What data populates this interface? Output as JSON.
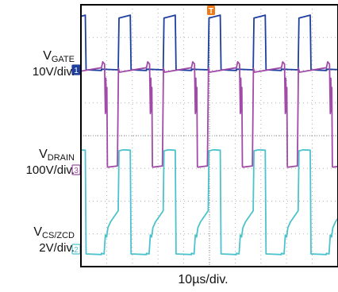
{
  "colors": {
    "gate": "#1f3f9f",
    "drain": "#a14aa8",
    "cs": "#4cc3cc",
    "trigger": "#f07a18",
    "frame": "#000000",
    "grid": "#b0b0b0",
    "background": "#ffffff"
  },
  "labels": {
    "gate_main": "V",
    "gate_sub": "GATE",
    "gate_scale": "10V/div.",
    "drain_main": "V",
    "drain_sub": "DRAIN",
    "drain_scale": "100V/div.",
    "cs_main": "V",
    "cs_sub": "CS/ZCD",
    "cs_scale": "2V/div.",
    "time_scale": "10µs/div."
  },
  "markers": {
    "gate": "1",
    "drain": "3",
    "cs": "2",
    "trigger": "T"
  },
  "chart_data": {
    "type": "line",
    "title": "",
    "xlabel": "10µs/div.",
    "x_divisions": 10,
    "y_divisions": 8,
    "grid": true,
    "period_divisions": 1.75,
    "series": [
      {
        "name": "VGATE",
        "scale": "10V/div.",
        "x_div": [
          0,
          0.65,
          0.68,
          1.12,
          1.15,
          1.75
        ],
        "y_div": [
          0,
          0,
          1.6,
          1.65,
          0,
          0
        ]
      },
      {
        "name": "VDRAIN",
        "scale": "100V/div.",
        "x_div": [
          0,
          0.05,
          0.12,
          0.15,
          0.17,
          0.19,
          0.21,
          0.23,
          0.25,
          0.62,
          0.66,
          0.7,
          1.75
        ],
        "y_div": [
          3.1,
          3.3,
          3.25,
          1.7,
          2.8,
          1.8,
          2.5,
          0.1,
          0.1,
          0.1,
          3.1,
          3.0,
          3.1
        ]
      },
      {
        "name": "VCS/ZCD",
        "scale": "2V/div.",
        "x_div": [
          0,
          0.1,
          0.15,
          0.2,
          0.25,
          0.35,
          0.65,
          0.68,
          0.85,
          1.12,
          1.15,
          1.75
        ],
        "y_div": [
          0,
          0,
          0.6,
          0.5,
          0.8,
          1.0,
          1.3,
          3.15,
          3.2,
          3.15,
          0,
          0
        ]
      }
    ]
  }
}
